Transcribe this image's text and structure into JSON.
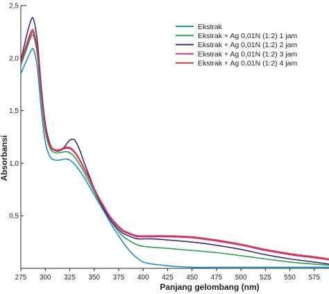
{
  "chart_data": {
    "type": "line",
    "xlabel": "Panjang gelombang (nm)",
    "ylabel": "Absorbansi",
    "xlim": [
      275,
      590
    ],
    "ylim": [
      0,
      2.5
    ],
    "x_ticks": [
      275,
      300,
      325,
      350,
      375,
      400,
      425,
      450,
      475,
      500,
      525,
      550,
      575
    ],
    "y_ticks": [
      0.5,
      1.0,
      1.5,
      2.0,
      2.5
    ],
    "y_tick_labels": [
      "0,5",
      "1,0",
      "1,5",
      "2,0",
      "2,5"
    ],
    "legend_position": "top-right",
    "grid": false,
    "series": [
      {
        "name": "Ekstrak",
        "color": "#1a8fc9",
        "x": [
          275,
          280,
          285,
          288,
          292,
          296,
          300,
          305,
          310,
          315,
          320,
          325,
          330,
          335,
          340,
          345,
          350,
          355,
          360,
          365,
          370,
          375,
          380,
          385,
          390,
          395,
          400,
          410,
          420,
          430,
          450,
          475,
          500,
          525,
          550,
          575,
          590
        ],
        "y": [
          1.85,
          1.96,
          2.06,
          2.08,
          1.9,
          1.5,
          1.2,
          1.06,
          1.03,
          1.03,
          1.04,
          1.03,
          0.99,
          0.93,
          0.86,
          0.78,
          0.7,
          0.62,
          0.54,
          0.46,
          0.38,
          0.31,
          0.24,
          0.18,
          0.13,
          0.09,
          0.06,
          0.04,
          0.03,
          0.02,
          0.01,
          0.01,
          0.01,
          0.01,
          0.01,
          0.01,
          0.01
        ]
      },
      {
        "name": "Ekstrak + Ag 0,01N (1:2) 1 jam",
        "color": "#2ea04c",
        "x": [
          275,
          280,
          285,
          288,
          292,
          296,
          300,
          305,
          310,
          315,
          320,
          325,
          330,
          335,
          340,
          345,
          350,
          355,
          360,
          365,
          370,
          375,
          380,
          385,
          390,
          395,
          400,
          410,
          425,
          450,
          475,
          500,
          525,
          550,
          575,
          590
        ],
        "y": [
          1.93,
          2.06,
          2.19,
          2.21,
          2.02,
          1.62,
          1.3,
          1.14,
          1.1,
          1.1,
          1.11,
          1.1,
          1.06,
          0.99,
          0.91,
          0.82,
          0.73,
          0.64,
          0.56,
          0.48,
          0.41,
          0.35,
          0.3,
          0.27,
          0.24,
          0.22,
          0.21,
          0.2,
          0.19,
          0.17,
          0.15,
          0.12,
          0.09,
          0.06,
          0.04,
          0.03
        ]
      },
      {
        "name": "Ekstrak + Ag 0,01N (1:2) 2 jam",
        "color": "#3b2a7a",
        "x": [
          275,
          280,
          285,
          288,
          292,
          296,
          300,
          305,
          310,
          315,
          320,
          325,
          330,
          335,
          340,
          345,
          350,
          355,
          360,
          365,
          370,
          375,
          380,
          385,
          390,
          395,
          400,
          410,
          425,
          450,
          475,
          500,
          525,
          550,
          575,
          590
        ],
        "y": [
          1.97,
          2.18,
          2.35,
          2.37,
          2.15,
          1.72,
          1.38,
          1.18,
          1.12,
          1.12,
          1.16,
          1.22,
          1.22,
          1.13,
          1.0,
          0.88,
          0.76,
          0.65,
          0.56,
          0.48,
          0.42,
          0.37,
          0.33,
          0.31,
          0.29,
          0.28,
          0.28,
          0.28,
          0.27,
          0.25,
          0.22,
          0.18,
          0.13,
          0.09,
          0.06,
          0.04
        ]
      },
      {
        "name": "Ekstrak + Ag 0,01N (1:2) 3  jam",
        "color": "#c2309a",
        "x": [
          275,
          280,
          285,
          288,
          292,
          296,
          300,
          305,
          310,
          315,
          320,
          325,
          330,
          335,
          340,
          345,
          350,
          355,
          360,
          365,
          370,
          375,
          380,
          385,
          390,
          395,
          400,
          410,
          425,
          450,
          475,
          500,
          525,
          550,
          575,
          590
        ],
        "y": [
          1.95,
          2.09,
          2.22,
          2.24,
          2.05,
          1.66,
          1.33,
          1.16,
          1.12,
          1.12,
          1.14,
          1.14,
          1.1,
          1.03,
          0.94,
          0.85,
          0.75,
          0.66,
          0.58,
          0.5,
          0.44,
          0.39,
          0.35,
          0.33,
          0.31,
          0.3,
          0.3,
          0.3,
          0.3,
          0.29,
          0.26,
          0.22,
          0.17,
          0.13,
          0.1,
          0.08
        ]
      },
      {
        "name": "Ekstrak + Ag 0,01N (1:2) 4 jam",
        "color": "#d43a36",
        "x": [
          275,
          280,
          285,
          288,
          292,
          296,
          300,
          305,
          310,
          315,
          320,
          325,
          330,
          335,
          340,
          345,
          350,
          355,
          360,
          365,
          370,
          375,
          380,
          385,
          390,
          395,
          400,
          410,
          425,
          450,
          475,
          500,
          525,
          550,
          575,
          590
        ],
        "y": [
          1.96,
          2.11,
          2.24,
          2.26,
          2.07,
          1.68,
          1.35,
          1.17,
          1.13,
          1.13,
          1.15,
          1.15,
          1.11,
          1.04,
          0.95,
          0.86,
          0.76,
          0.67,
          0.59,
          0.51,
          0.45,
          0.4,
          0.36,
          0.34,
          0.32,
          0.31,
          0.31,
          0.31,
          0.31,
          0.3,
          0.27,
          0.23,
          0.18,
          0.14,
          0.11,
          0.09
        ]
      }
    ]
  }
}
